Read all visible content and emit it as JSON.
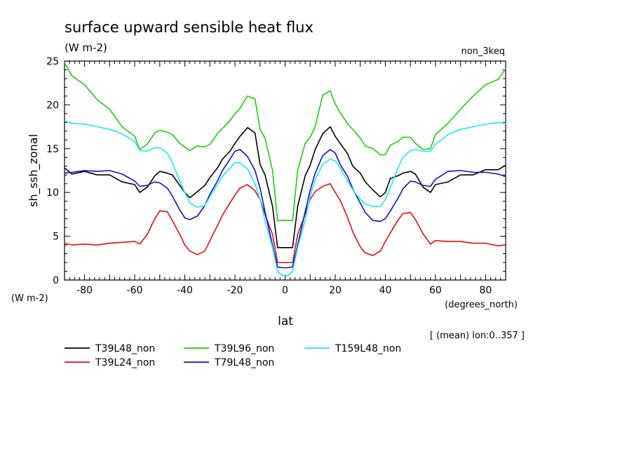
{
  "chart_data": {
    "type": "line",
    "title": "surface upward sensible heat flux",
    "units": "(W m-2)",
    "experiment": "non_3keq",
    "ylabel": "sh_ssh_zonal",
    "yunits": "(W m-2)",
    "xlabel": "lat",
    "xunits": "(degrees_north)",
    "note": "[ (mean) lon:0..357 ]",
    "xlim": [
      -88,
      88
    ],
    "ylim": [
      0,
      25
    ],
    "xticks": [
      -80,
      -60,
      -40,
      -20,
      0,
      20,
      40,
      60,
      80
    ],
    "yticks": [
      0,
      5,
      10,
      15,
      20,
      25
    ],
    "grid": false,
    "legend_position": "bottom-left",
    "series": [
      {
        "name": "T39L48_non",
        "color": "#000000",
        "x": [
          -88,
          -85,
          -80,
          -75,
          -70,
          -65,
          -60,
          -58,
          -55,
          -52,
          -50,
          -47,
          -45,
          -42,
          -40,
          -38,
          -35,
          -32,
          -30,
          -27,
          -25,
          -22,
          -20,
          -18,
          -15,
          -12,
          -10,
          -8,
          -5,
          -3,
          -1,
          1,
          3,
          5,
          8,
          10,
          12,
          15,
          18,
          20,
          22,
          25,
          27,
          30,
          32,
          35,
          38,
          40,
          42,
          45,
          47,
          50,
          52,
          55,
          58,
          60,
          65,
          70,
          75,
          80,
          85,
          88
        ],
        "values": [
          12.8,
          12.1,
          12.4,
          12.0,
          12.0,
          11.2,
          10.9,
          10.0,
          10.6,
          11.9,
          12.4,
          12.2,
          12.0,
          10.8,
          10.0,
          9.4,
          10.1,
          10.8,
          11.7,
          12.8,
          13.8,
          14.7,
          15.6,
          16.4,
          17.4,
          16.8,
          13.2,
          12.0,
          8.4,
          3.7,
          3.7,
          3.7,
          3.7,
          8.4,
          11.9,
          13.1,
          14.9,
          16.7,
          17.5,
          16.4,
          15.6,
          14.4,
          13.0,
          12.2,
          11.2,
          10.3,
          9.5,
          10.0,
          11.6,
          11.9,
          12.2,
          12.4,
          12.1,
          10.6,
          10.0,
          10.9,
          11.2,
          12.0,
          12.0,
          12.6,
          12.6,
          13.1
        ]
      },
      {
        "name": "T39L24_non",
        "color": "#e01010",
        "x": [
          -88,
          -85,
          -80,
          -75,
          -70,
          -65,
          -60,
          -58,
          -55,
          -52,
          -50,
          -47,
          -45,
          -42,
          -40,
          -38,
          -35,
          -32,
          -30,
          -27,
          -25,
          -22,
          -20,
          -18,
          -15,
          -12,
          -10,
          -8,
          -5,
          -3,
          -1,
          1,
          3,
          5,
          8,
          10,
          12,
          15,
          18,
          20,
          22,
          25,
          27,
          30,
          32,
          35,
          38,
          40,
          42,
          45,
          47,
          50,
          52,
          55,
          58,
          60,
          65,
          70,
          75,
          80,
          85,
          88
        ],
        "values": [
          4.2,
          4.0,
          4.1,
          4.0,
          4.2,
          4.3,
          4.4,
          4.1,
          5.2,
          7.0,
          7.9,
          7.8,
          6.8,
          5.2,
          4.0,
          3.3,
          2.9,
          3.3,
          4.5,
          6.2,
          7.4,
          8.8,
          9.7,
          10.5,
          10.9,
          10.2,
          9.2,
          7.5,
          5.2,
          2.0,
          2.0,
          2.0,
          2.0,
          5.2,
          7.5,
          9.2,
          10.1,
          10.7,
          11.0,
          10.0,
          9.1,
          7.1,
          5.5,
          3.8,
          3.1,
          2.8,
          3.3,
          4.4,
          5.4,
          6.8,
          7.6,
          7.7,
          6.9,
          5.3,
          4.1,
          4.5,
          4.4,
          4.4,
          4.2,
          4.2,
          3.9,
          4.0
        ]
      },
      {
        "name": "T39L96_non",
        "color": "#20cc10",
        "x": [
          -88,
          -85,
          -80,
          -75,
          -70,
          -65,
          -60,
          -58,
          -55,
          -52,
          -50,
          -47,
          -45,
          -42,
          -40,
          -38,
          -35,
          -32,
          -30,
          -27,
          -25,
          -22,
          -20,
          -18,
          -15,
          -12,
          -10,
          -8,
          -5,
          -3,
          -1,
          1,
          3,
          5,
          8,
          10,
          12,
          15,
          18,
          20,
          22,
          25,
          27,
          30,
          32,
          35,
          38,
          40,
          42,
          45,
          47,
          50,
          52,
          55,
          58,
          60,
          65,
          70,
          75,
          80,
          85,
          88
        ],
        "values": [
          24.8,
          23.3,
          22.3,
          20.6,
          19.5,
          17.5,
          16.4,
          14.9,
          15.5,
          16.8,
          17.1,
          16.9,
          16.6,
          15.6,
          15.2,
          14.8,
          15.3,
          15.2,
          15.5,
          16.7,
          17.3,
          18.2,
          19.0,
          19.6,
          21.0,
          20.7,
          17.2,
          16.2,
          12.5,
          6.8,
          6.8,
          6.8,
          6.8,
          12.5,
          15.6,
          16.3,
          17.5,
          21.1,
          21.6,
          20.1,
          19.1,
          17.8,
          17.2,
          16.2,
          15.3,
          15.0,
          14.3,
          14.3,
          15.4,
          15.8,
          16.3,
          16.3,
          15.6,
          14.9,
          15.0,
          16.6,
          17.9,
          19.5,
          21.0,
          22.3,
          22.9,
          24.1
        ]
      },
      {
        "name": "T79L48_non",
        "color": "#1010cc",
        "x": [
          -88,
          -85,
          -80,
          -75,
          -70,
          -65,
          -60,
          -58,
          -55,
          -52,
          -50,
          -47,
          -45,
          -42,
          -40,
          -38,
          -35,
          -32,
          -30,
          -27,
          -25,
          -22,
          -20,
          -18,
          -15,
          -12,
          -10,
          -8,
          -5,
          -3,
          -1,
          1,
          3,
          5,
          8,
          10,
          12,
          15,
          18,
          20,
          22,
          25,
          27,
          30,
          32,
          35,
          38,
          40,
          42,
          45,
          47,
          50,
          52,
          55,
          58,
          60,
          65,
          70,
          75,
          80,
          85,
          88
        ],
        "values": [
          12.2,
          12.3,
          12.5,
          12.4,
          12.5,
          12.1,
          11.3,
          10.7,
          10.8,
          11.2,
          11.1,
          10.5,
          9.6,
          8.0,
          7.1,
          6.9,
          7.3,
          8.5,
          9.8,
          11.3,
          12.5,
          13.8,
          14.7,
          14.9,
          14.1,
          12.5,
          10.5,
          7.8,
          4.0,
          1.5,
          1.4,
          1.4,
          1.5,
          4.0,
          7.8,
          10.2,
          12.2,
          14.2,
          14.9,
          14.5,
          13.2,
          11.8,
          10.4,
          8.8,
          7.7,
          6.8,
          6.7,
          7.0,
          7.9,
          9.3,
          10.4,
          11.3,
          11.2,
          10.8,
          10.7,
          11.5,
          12.4,
          12.5,
          12.3,
          12.3,
          12.1,
          11.8
        ]
      },
      {
        "name": "T159L48_non",
        "color": "#20e8f0",
        "x": [
          -88,
          -85,
          -80,
          -75,
          -70,
          -65,
          -60,
          -58,
          -55,
          -52,
          -50,
          -47,
          -45,
          -42,
          -40,
          -38,
          -35,
          -32,
          -30,
          -27,
          -25,
          -22,
          -20,
          -18,
          -15,
          -12,
          -10,
          -8,
          -5,
          -3,
          -1,
          1,
          3,
          5,
          8,
          10,
          12,
          15,
          18,
          20,
          22,
          25,
          27,
          30,
          32,
          35,
          38,
          40,
          42,
          45,
          47,
          50,
          52,
          55,
          58,
          60,
          65,
          70,
          75,
          80,
          85,
          88
        ],
        "values": [
          18.2,
          17.9,
          17.8,
          17.5,
          17.2,
          16.7,
          15.8,
          14.8,
          14.7,
          15.1,
          15.1,
          14.5,
          13.4,
          11.3,
          10.0,
          8.8,
          8.3,
          8.5,
          9.5,
          10.9,
          11.8,
          12.8,
          13.4,
          13.4,
          12.7,
          11.0,
          9.2,
          6.8,
          3.7,
          1.0,
          0.5,
          0.5,
          1.0,
          3.7,
          6.8,
          9.5,
          11.5,
          13.2,
          13.8,
          13.6,
          12.8,
          11.3,
          10.3,
          9.2,
          8.7,
          8.4,
          8.4,
          9.2,
          10.5,
          12.8,
          14.0,
          14.8,
          14.9,
          14.7,
          14.7,
          15.5,
          16.6,
          17.2,
          17.5,
          17.8,
          18.0,
          17.9
        ]
      }
    ]
  }
}
